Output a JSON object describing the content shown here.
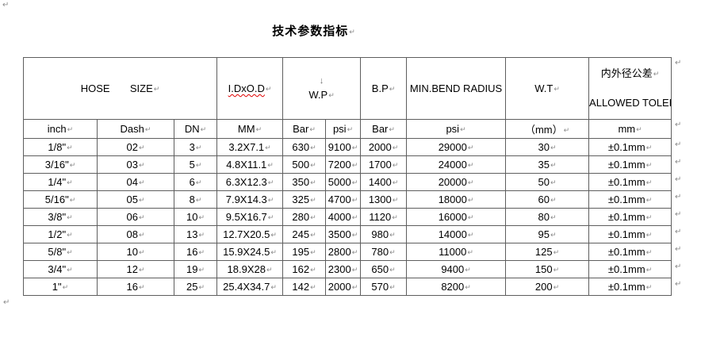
{
  "page": {
    "title": "技术参数指标"
  },
  "marks": {
    "pilcrow": "↵",
    "linebreak": "↓"
  },
  "colors": {
    "border": "#5e5e5e",
    "mark_gray": "#8a8a8a",
    "spellcheck_red": "#e00000",
    "text": "#000000",
    "background": "#ffffff"
  },
  "table": {
    "header": {
      "hose_size": "HOSE       SIZE",
      "idxod": "I.DxO.D",
      "wp": "W.P",
      "bp": "B.P",
      "min_bend_radius": "MIN.BEND RADIUS",
      "wt": "W.T",
      "tolerance_cn": "内外径公差",
      "tolerance_en": "ALLOWED TOLERANCE"
    },
    "units": [
      "inch",
      "Dash",
      "DN",
      "MM",
      "Bar",
      "psi",
      "Bar",
      "psi",
      "（mm）",
      "mm"
    ],
    "rows": [
      [
        "1/8\"",
        "02",
        "3",
        "3.2X7.1",
        "630",
        "9100",
        "2000",
        "29000",
        "30",
        "±0.1mm"
      ],
      [
        "3/16\"",
        "03",
        "5",
        "4.8X11.1",
        "500",
        "7200",
        "1700",
        "24000",
        "35",
        "±0.1mm"
      ],
      [
        "1/4\"",
        "04",
        "6",
        "6.3X12.3",
        "350",
        "5000",
        "1400",
        "20000",
        "50",
        "±0.1mm"
      ],
      [
        "5/16\"",
        "05",
        "8",
        "7.9X14.3",
        "325",
        "4700",
        "1300",
        "18000",
        "60",
        "±0.1mm"
      ],
      [
        "3/8\"",
        "06",
        "10",
        "9.5X16.7",
        "280",
        "4000",
        "1120",
        "16000",
        "80",
        "±0.1mm"
      ],
      [
        "1/2\"",
        "08",
        "13",
        "12.7X20.5",
        "245",
        "3500",
        "980",
        "14000",
        "95",
        "±0.1mm"
      ],
      [
        "5/8\"",
        "10",
        "16",
        "15.9X24.5",
        "195",
        "2800",
        "780",
        "11000",
        "125",
        "±0.1mm"
      ],
      [
        "3/4\"",
        "12",
        "19",
        "18.9X28",
        "162",
        "2300",
        "650",
        "9400",
        "150",
        "±0.1mm"
      ],
      [
        "1\"",
        "16",
        "25",
        "25.4X34.7",
        "142",
        "2000",
        "570",
        "8200",
        "200",
        "±0.1mm"
      ]
    ]
  }
}
